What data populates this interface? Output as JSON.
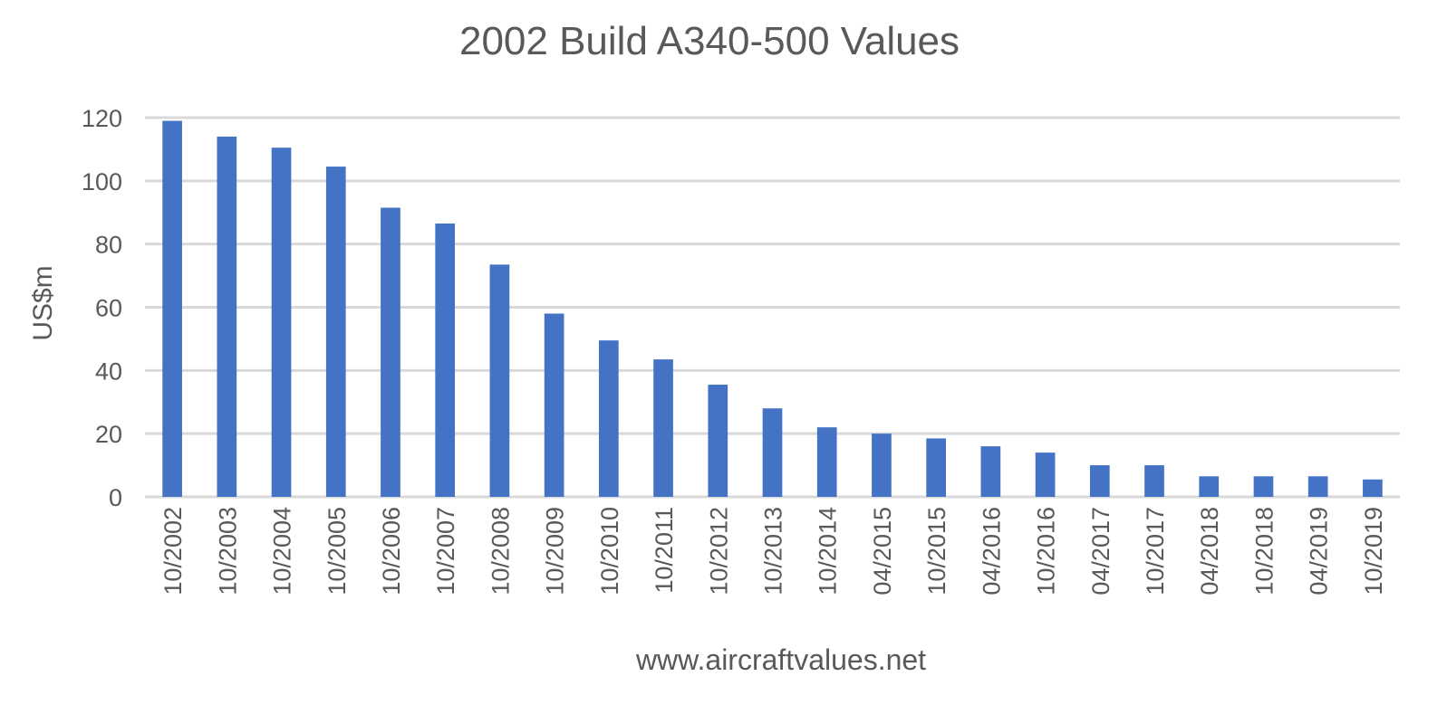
{
  "chart_data": {
    "type": "bar",
    "title": "2002 Build A340-500 Values",
    "xlabel": "www.aircraftvalues.net",
    "ylabel": "US$m",
    "ylim": [
      0,
      120
    ],
    "yticks": [
      0,
      20,
      40,
      60,
      80,
      100,
      120
    ],
    "grid": true,
    "legend": "none",
    "bar_color": "#4472C4",
    "categories": [
      "10/2002",
      "10/2003",
      "10/2004",
      "10/2005",
      "10/2006",
      "10/2007",
      "10/2008",
      "10/2009",
      "10/2010",
      "10/2011",
      "10/2012",
      "10/2013",
      "10/2014",
      "04/2015",
      "10/2015",
      "04/2016",
      "10/2016",
      "04/2017",
      "10/2017",
      "04/2018",
      "10/2018",
      "04/2019",
      "10/2019"
    ],
    "values": [
      119,
      114,
      110.5,
      104.5,
      91.5,
      86.5,
      73.5,
      58,
      49.5,
      43.5,
      35.5,
      28,
      22,
      20,
      18.5,
      16,
      14,
      10,
      10,
      6.5,
      6.5,
      6.5,
      5.5
    ]
  }
}
